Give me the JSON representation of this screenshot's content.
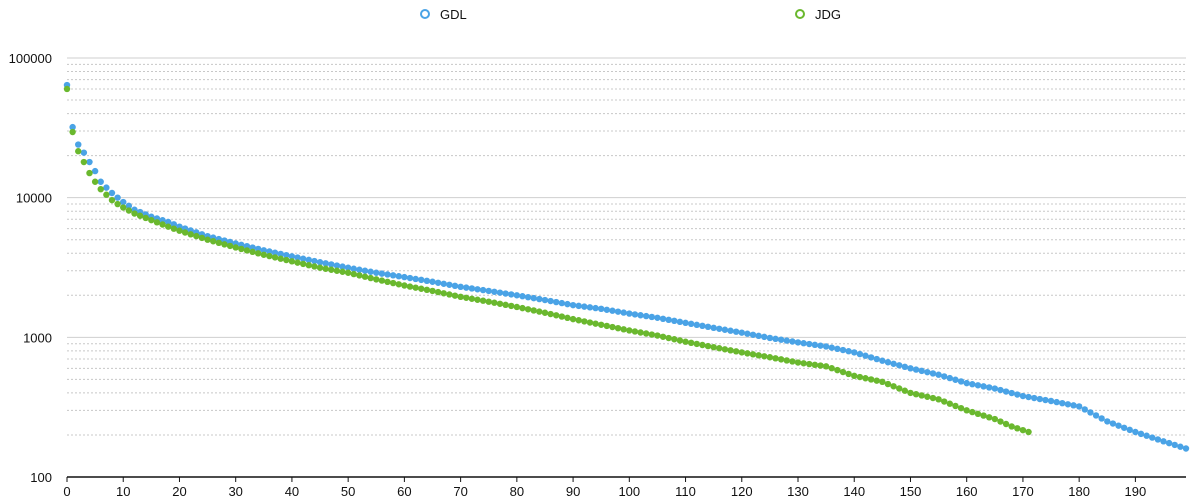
{
  "chart_data": {
    "type": "scatter",
    "title": "",
    "xlabel": "",
    "ylabel": "",
    "yscale": "log",
    "xlim": [
      0,
      199
    ],
    "ylim": [
      100,
      100000
    ],
    "x_ticks": [
      0,
      10,
      20,
      30,
      40,
      50,
      60,
      70,
      80,
      90,
      100,
      110,
      120,
      130,
      140,
      150,
      160,
      170,
      180,
      190
    ],
    "y_ticks": [
      100,
      1000,
      10000,
      100000
    ],
    "x_tick_labels": [
      "0",
      "10",
      "20",
      "30",
      "40",
      "50",
      "60",
      "70",
      "80",
      "90",
      "100",
      "110",
      "120",
      "130",
      "140",
      "150",
      "160",
      "170",
      "180",
      "190"
    ],
    "y_tick_labels": [
      "100",
      "1000",
      "10000",
      "100000"
    ],
    "grid": "horizontal major solid, minor dotted",
    "legend_position": "top-center",
    "series": [
      {
        "name": "GDL",
        "color": "#4aa3e6",
        "points": [
          [
            0,
            64000
          ],
          [
            1,
            32000
          ],
          [
            2,
            24000
          ],
          [
            3,
            21000
          ],
          [
            4,
            18000
          ],
          [
            5,
            15500
          ],
          [
            6,
            13000
          ],
          [
            7,
            11800
          ],
          [
            8,
            10800
          ],
          [
            9,
            10000
          ],
          [
            10,
            9300
          ],
          [
            12,
            8200
          ],
          [
            15,
            7300
          ],
          [
            18,
            6700
          ],
          [
            20,
            6200
          ],
          [
            25,
            5300
          ],
          [
            30,
            4700
          ],
          [
            35,
            4200
          ],
          [
            40,
            3800
          ],
          [
            45,
            3450
          ],
          [
            50,
            3150
          ],
          [
            55,
            2900
          ],
          [
            60,
            2700
          ],
          [
            65,
            2500
          ],
          [
            70,
            2300
          ],
          [
            75,
            2150
          ],
          [
            80,
            2000
          ],
          [
            85,
            1850
          ],
          [
            90,
            1700
          ],
          [
            95,
            1600
          ],
          [
            100,
            1480
          ],
          [
            105,
            1380
          ],
          [
            110,
            1270
          ],
          [
            115,
            1170
          ],
          [
            120,
            1080
          ],
          [
            125,
            990
          ],
          [
            130,
            920
          ],
          [
            135,
            860
          ],
          [
            140,
            780
          ],
          [
            145,
            680
          ],
          [
            150,
            600
          ],
          [
            155,
            540
          ],
          [
            160,
            470
          ],
          [
            165,
            430
          ],
          [
            170,
            380
          ],
          [
            175,
            350
          ],
          [
            180,
            320
          ],
          [
            185,
            250
          ],
          [
            190,
            210
          ],
          [
            195,
            180
          ],
          [
            199,
            160
          ]
        ]
      },
      {
        "name": "JDG",
        "color": "#6ab82e",
        "points": [
          [
            0,
            60000
          ],
          [
            1,
            29500
          ],
          [
            2,
            21500
          ],
          [
            3,
            18000
          ],
          [
            4,
            15000
          ],
          [
            5,
            13000
          ],
          [
            6,
            11500
          ],
          [
            7,
            10500
          ],
          [
            8,
            9600
          ],
          [
            9,
            9000
          ],
          [
            10,
            8500
          ],
          [
            12,
            7700
          ],
          [
            15,
            6900
          ],
          [
            18,
            6200
          ],
          [
            20,
            5800
          ],
          [
            25,
            5000
          ],
          [
            30,
            4400
          ],
          [
            35,
            3900
          ],
          [
            40,
            3500
          ],
          [
            45,
            3150
          ],
          [
            50,
            2900
          ],
          [
            55,
            2600
          ],
          [
            60,
            2350
          ],
          [
            65,
            2150
          ],
          [
            70,
            1950
          ],
          [
            75,
            1800
          ],
          [
            80,
            1650
          ],
          [
            85,
            1500
          ],
          [
            90,
            1350
          ],
          [
            95,
            1230
          ],
          [
            100,
            1120
          ],
          [
            105,
            1030
          ],
          [
            110,
            930
          ],
          [
            115,
            850
          ],
          [
            120,
            780
          ],
          [
            125,
            720
          ],
          [
            130,
            660
          ],
          [
            135,
            620
          ],
          [
            140,
            530
          ],
          [
            145,
            480
          ],
          [
            150,
            400
          ],
          [
            155,
            360
          ],
          [
            160,
            300
          ],
          [
            165,
            260
          ],
          [
            168,
            230
          ],
          [
            171,
            210
          ]
        ]
      }
    ]
  }
}
